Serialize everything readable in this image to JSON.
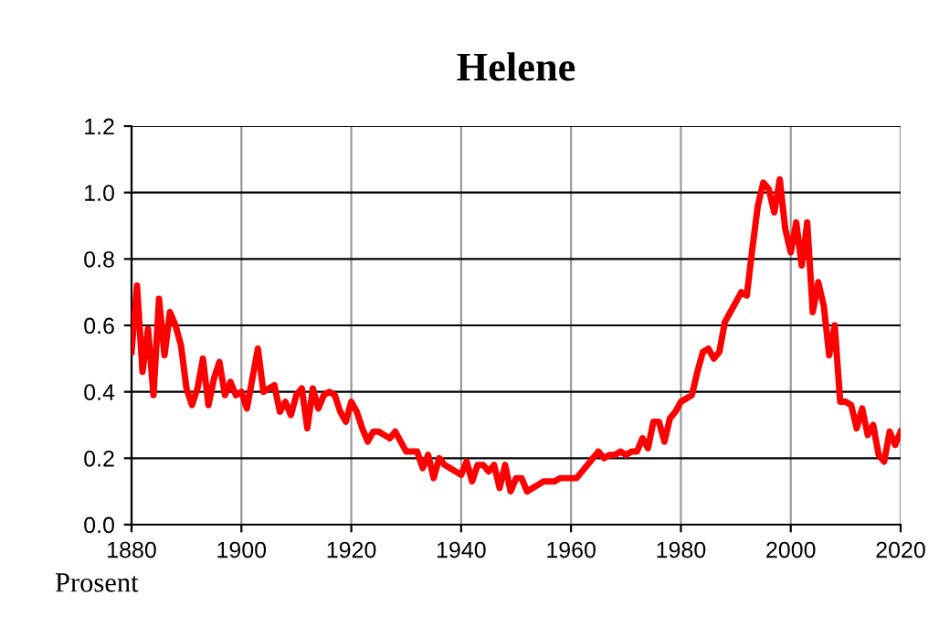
{
  "chart_data": {
    "type": "line",
    "title": "Helene",
    "annotations": [
      "Prosent"
    ],
    "x": [
      1880,
      1881,
      1882,
      1883,
      1884,
      1885,
      1886,
      1887,
      1888,
      1889,
      1890,
      1891,
      1892,
      1893,
      1894,
      1895,
      1896,
      1897,
      1898,
      1899,
      1900,
      1901,
      1902,
      1903,
      1904,
      1905,
      1906,
      1907,
      1908,
      1909,
      1910,
      1911,
      1912,
      1913,
      1914,
      1915,
      1916,
      1917,
      1918,
      1919,
      1920,
      1921,
      1922,
      1923,
      1924,
      1925,
      1926,
      1927,
      1928,
      1929,
      1930,
      1931,
      1932,
      1933,
      1934,
      1935,
      1936,
      1937,
      1938,
      1939,
      1940,
      1941,
      1942,
      1943,
      1944,
      1945,
      1946,
      1947,
      1948,
      1949,
      1950,
      1951,
      1952,
      1953,
      1954,
      1955,
      1956,
      1957,
      1958,
      1959,
      1960,
      1961,
      1962,
      1963,
      1964,
      1965,
      1966,
      1967,
      1968,
      1969,
      1970,
      1971,
      1972,
      1973,
      1974,
      1975,
      1976,
      1977,
      1978,
      1979,
      1980,
      1981,
      1982,
      1983,
      1984,
      1985,
      1986,
      1987,
      1988,
      1989,
      1990,
      1991,
      1992,
      1993,
      1994,
      1995,
      1996,
      1997,
      1998,
      1999,
      2000,
      2001,
      2002,
      2003,
      2004,
      2005,
      2006,
      2007,
      2008,
      2009,
      2010,
      2011,
      2012,
      2013,
      2014,
      2015,
      2016,
      2017,
      2018,
      2019,
      2020
    ],
    "series": [
      {
        "color": "#ff0000",
        "values": [
          0.52,
          0.72,
          0.46,
          0.59,
          0.39,
          0.68,
          0.51,
          0.64,
          0.6,
          0.54,
          0.41,
          0.36,
          0.41,
          0.5,
          0.36,
          0.44,
          0.49,
          0.39,
          0.43,
          0.39,
          0.4,
          0.35,
          0.44,
          0.53,
          0.4,
          0.41,
          0.42,
          0.34,
          0.37,
          0.33,
          0.39,
          0.41,
          0.29,
          0.41,
          0.35,
          0.39,
          0.4,
          0.39,
          0.34,
          0.31,
          0.37,
          0.34,
          0.29,
          0.25,
          0.28,
          0.28,
          0.27,
          0.26,
          0.28,
          0.25,
          0.22,
          0.22,
          0.22,
          0.17,
          0.21,
          0.14,
          0.2,
          0.18,
          0.17,
          0.16,
          0.15,
          0.19,
          0.13,
          0.18,
          0.18,
          0.16,
          0.18,
          0.11,
          0.18,
          0.1,
          0.14,
          0.14,
          0.1,
          0.11,
          0.12,
          0.13,
          0.13,
          0.13,
          0.14,
          0.14,
          0.14,
          0.14,
          0.16,
          0.18,
          0.2,
          0.22,
          0.2,
          0.21,
          0.21,
          0.22,
          0.21,
          0.22,
          0.22,
          0.26,
          0.23,
          0.31,
          0.31,
          0.25,
          0.32,
          0.34,
          0.37,
          0.38,
          0.39,
          0.46,
          0.52,
          0.53,
          0.5,
          0.52,
          0.61,
          0.64,
          0.67,
          0.7,
          0.69,
          0.83,
          0.96,
          1.03,
          1.01,
          0.94,
          1.04,
          0.89,
          0.82,
          0.91,
          0.78,
          0.91,
          0.64,
          0.73,
          0.66,
          0.51,
          0.6,
          0.37,
          0.37,
          0.36,
          0.29,
          0.35,
          0.27,
          0.3,
          0.21,
          0.19,
          0.28,
          0.24,
          0.28
        ]
      }
    ],
    "xlim": [
      1880,
      2020
    ],
    "xticks": [
      1880,
      1900,
      1920,
      1940,
      1960,
      1980,
      2000,
      2020
    ],
    "ylim": [
      0,
      1.2
    ],
    "yticks": [
      {
        "value": 0,
        "label": "0.0"
      },
      {
        "value": 0.2,
        "label": "0.2"
      },
      {
        "value": 0.4,
        "label": "0.4"
      },
      {
        "value": 0.6,
        "label": "0.6"
      },
      {
        "value": 0.8,
        "label": "0.8"
      },
      {
        "value": 1.0,
        "label": "1.0"
      },
      {
        "value": 1.2,
        "label": "1.2"
      }
    ],
    "grid": true,
    "line_style": "solid",
    "marker": "none",
    "legend": false
  }
}
